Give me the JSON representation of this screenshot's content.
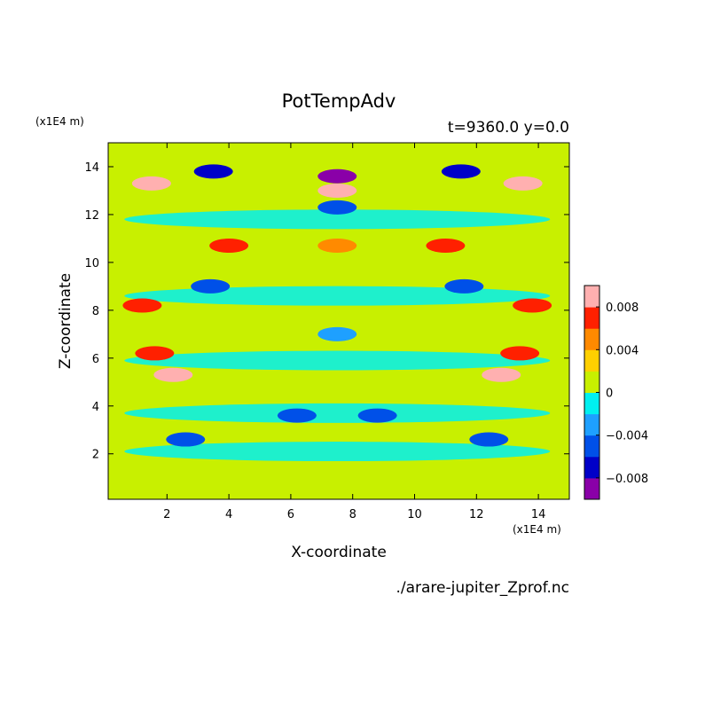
{
  "chart_data": {
    "type": "heatmap",
    "title": "PotTempAdv",
    "subtitle": "t=9360.0 y=0.0",
    "xlabel": "X-coordinate",
    "ylabel": "Z-coordinate",
    "x_unit": "(x1E4 m)",
    "y_unit": "(x1E4 m)",
    "xlim": [
      0.1,
      15.0
    ],
    "ylim": [
      0.1,
      15.0
    ],
    "x_ticks": [
      2,
      4,
      6,
      8,
      10,
      12,
      14
    ],
    "y_ticks": [
      2,
      4,
      6,
      8,
      10,
      12,
      14
    ],
    "x_tick_labels": [
      "2",
      "4",
      "6",
      "8",
      "10",
      "12",
      "14"
    ],
    "y_tick_labels": [
      "2",
      "4",
      "6",
      "8",
      "10",
      "12",
      "14"
    ],
    "colorbar": {
      "levels": [
        -0.01,
        -0.008,
        -0.006,
        -0.004,
        -0.002,
        0,
        0.002,
        0.004,
        0.006,
        0.008,
        0.01
      ],
      "colors": [
        "#8a00a8",
        "#0000c8",
        "#0050e8",
        "#1ea0ff",
        "#00f0f0",
        "#c8f000",
        "#ffd000",
        "#ff8a00",
        "#ff2000",
        "#ffb0b0"
      ],
      "tick_values": [
        0.008,
        0.004,
        0,
        -0.004,
        -0.008
      ],
      "tick_labels": [
        "0.008",
        "0.004",
        "0",
        "−0.004",
        "−0.008"
      ]
    },
    "grid": false,
    "legend": "colorbar right",
    "features": [
      {
        "x": 7.5,
        "z": 13.0,
        "value": 0.009
      },
      {
        "x": 7.5,
        "z": 13.6,
        "value": -0.009
      },
      {
        "x": 3.5,
        "z": 13.8,
        "value": -0.007
      },
      {
        "x": 11.5,
        "z": 13.8,
        "value": -0.007
      },
      {
        "x": 1.5,
        "z": 13.3,
        "value": 0.009
      },
      {
        "x": 13.5,
        "z": 13.3,
        "value": 0.009
      },
      {
        "x": 7.5,
        "z": 12.3,
        "value": -0.006
      },
      {
        "x": 4.0,
        "z": 10.7,
        "value": 0.006
      },
      {
        "x": 11.0,
        "z": 10.7,
        "value": 0.006
      },
      {
        "x": 7.5,
        "z": 10.7,
        "value": 0.005
      },
      {
        "x": 2.2,
        "z": 5.3,
        "value": 0.009
      },
      {
        "x": 12.8,
        "z": 5.3,
        "value": 0.009
      },
      {
        "x": 1.6,
        "z": 6.2,
        "value": 0.006
      },
      {
        "x": 13.4,
        "z": 6.2,
        "value": 0.006
      },
      {
        "x": 1.2,
        "z": 8.2,
        "value": 0.006
      },
      {
        "x": 13.8,
        "z": 8.2,
        "value": 0.006
      },
      {
        "x": 3.4,
        "z": 9.0,
        "value": -0.006
      },
      {
        "x": 11.6,
        "z": 9.0,
        "value": -0.006
      },
      {
        "x": 2.6,
        "z": 2.6,
        "value": -0.006
      },
      {
        "x": 12.4,
        "z": 2.6,
        "value": -0.006
      },
      {
        "x": 6.2,
        "z": 3.6,
        "value": -0.005
      },
      {
        "x": 8.8,
        "z": 3.6,
        "value": -0.005
      },
      {
        "x": 7.5,
        "z": 7.0,
        "value": -0.003
      }
    ]
  },
  "footer": {
    "filename": "./arare-jupiter_Zprof.nc"
  }
}
